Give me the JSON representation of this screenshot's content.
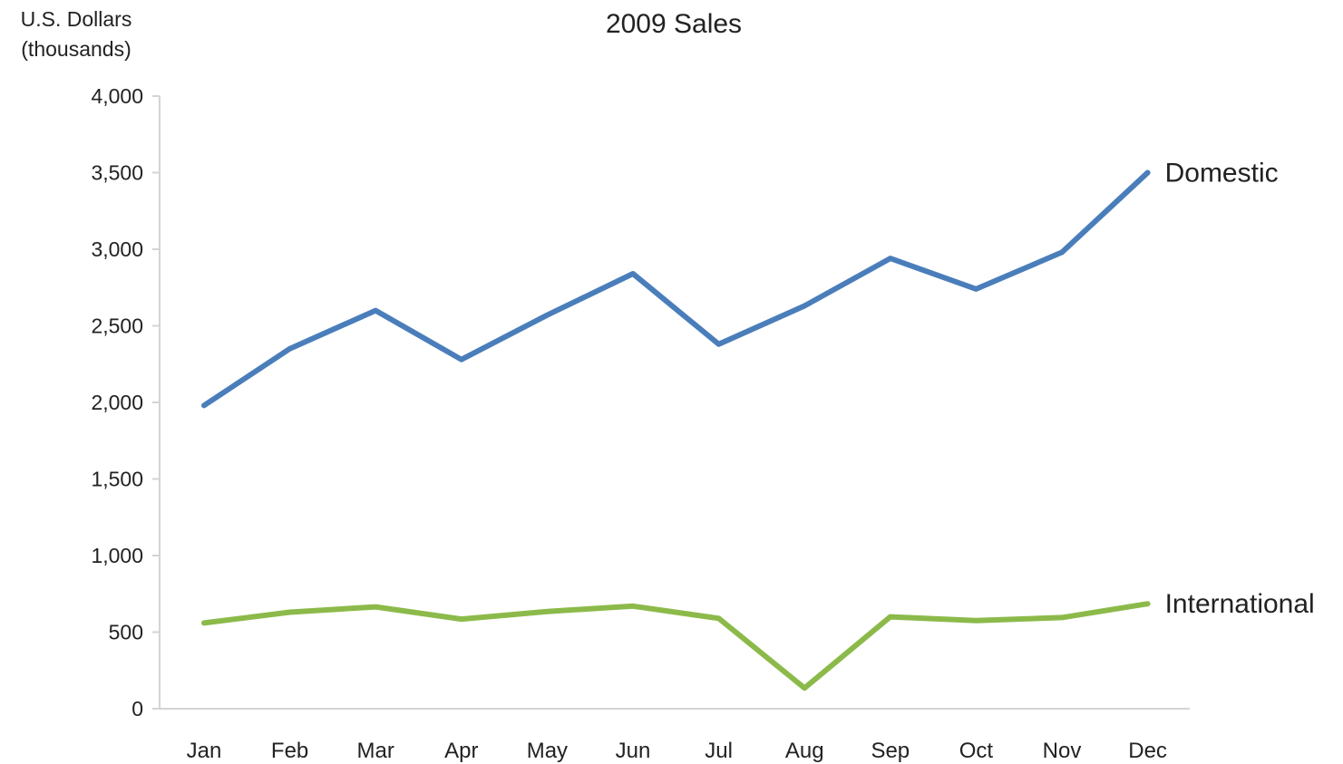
{
  "chart_data": {
    "type": "line",
    "title": "2009 Sales",
    "ylabel_lines": [
      "U.S. Dollars",
      "(thousands)"
    ],
    "xlabel": "",
    "categories": [
      "Jan",
      "Feb",
      "Mar",
      "Apr",
      "May",
      "Jun",
      "Jul",
      "Aug",
      "Sep",
      "Oct",
      "Nov",
      "Dec"
    ],
    "ylim": [
      0,
      4000
    ],
    "yticks": [
      0,
      500,
      1000,
      1500,
      2000,
      2500,
      3000,
      3500,
      4000
    ],
    "ytick_labels": [
      "0",
      "500",
      "1,000",
      "1,500",
      "2,000",
      "2,500",
      "3,000",
      "3,500",
      "4,000"
    ],
    "grid": false,
    "legend": "none",
    "series": [
      {
        "name": "Domestic",
        "color": "#4a7ebb",
        "values": [
          1980,
          2350,
          2600,
          2280,
          2570,
          2840,
          2380,
          2630,
          2940,
          2740,
          2980,
          3500
        ]
      },
      {
        "name": "International",
        "color": "#8cba4a",
        "values": [
          560,
          630,
          665,
          585,
          635,
          670,
          590,
          135,
          600,
          575,
          595,
          685
        ]
      }
    ]
  }
}
